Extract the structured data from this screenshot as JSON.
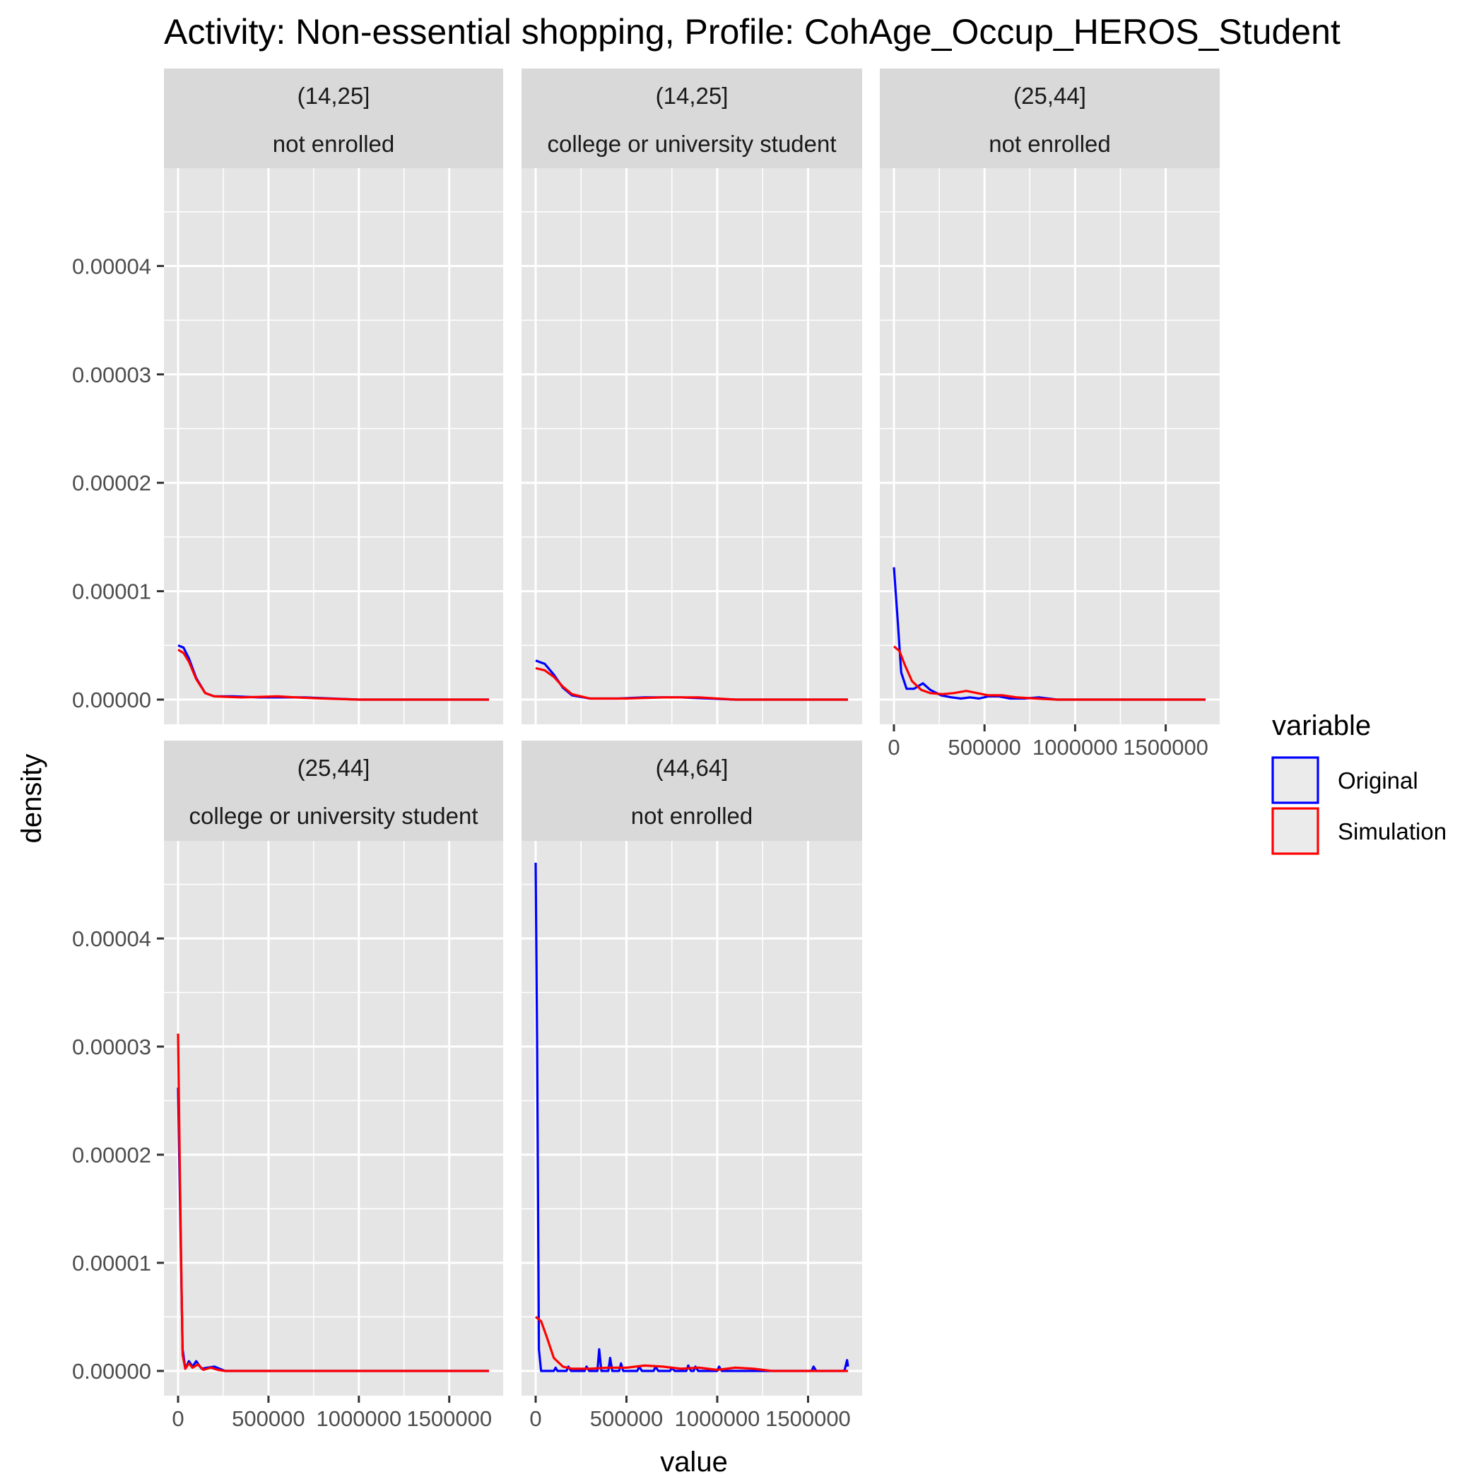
{
  "title": "Activity: Non-essential shopping, Profile: CohAge_Occup_HEROS_Student",
  "x_axis_label": "value",
  "y_axis_label": "density",
  "legend": {
    "title": "variable",
    "items": [
      {
        "label": "Original",
        "color": "#0000ff"
      },
      {
        "label": "Simulation",
        "color": "#ff0000"
      }
    ]
  },
  "colors": {
    "panel_bg": "#e5e5e5",
    "strip_bg": "#d9d9d9",
    "grid": "#ffffff",
    "original": "#0000ff",
    "simulation": "#ff0000"
  },
  "chart_data": {
    "type": "line",
    "facets": "wrap",
    "xlim": [
      0,
      1720000
    ],
    "ylim": [
      0,
      4.85e-05
    ],
    "x_ticks": [
      0,
      500000,
      1000000,
      1500000
    ],
    "x_tick_labels": [
      "0",
      "500000",
      "1000000",
      "1500000"
    ],
    "y_ticks": [
      0,
      1e-05,
      2e-05,
      3e-05,
      4e-05
    ],
    "y_tick_labels": [
      "0.00000",
      "0.00001",
      "0.00002",
      "0.00003",
      "0.00004"
    ],
    "panels": [
      {
        "strip1": "(14,25]",
        "strip2": "not enrolled",
        "series": [
          {
            "name": "Original",
            "points": [
              [
                0,
                5e-06
              ],
              [
                30000,
                4.8e-06
              ],
              [
                60000,
                3.8e-06
              ],
              [
                100000,
                2e-06
              ],
              [
                150000,
                6e-07
              ],
              [
                200000,
                3e-07
              ],
              [
                300000,
                3e-07
              ],
              [
                450000,
                2e-07
              ],
              [
                550000,
                2e-07
              ],
              [
                700000,
                2e-07
              ],
              [
                850000,
                1e-07
              ],
              [
                1000000,
                0
              ],
              [
                1720000,
                0
              ]
            ]
          },
          {
            "name": "Simulation",
            "points": [
              [
                0,
                4.6e-06
              ],
              [
                30000,
                4.3e-06
              ],
              [
                60000,
                3.5e-06
              ],
              [
                100000,
                1.9e-06
              ],
              [
                150000,
                6e-07
              ],
              [
                200000,
                3e-07
              ],
              [
                350000,
                2e-07
              ],
              [
                550000,
                3e-07
              ],
              [
                650000,
                2e-07
              ],
              [
                800000,
                1e-07
              ],
              [
                1000000,
                0
              ],
              [
                1720000,
                0
              ]
            ]
          }
        ]
      },
      {
        "strip1": "(14,25]",
        "strip2": "college or university student",
        "series": [
          {
            "name": "Original",
            "points": [
              [
                0,
                3.6e-06
              ],
              [
                50000,
                3.3e-06
              ],
              [
                100000,
                2.3e-06
              ],
              [
                150000,
                1.1e-06
              ],
              [
                200000,
                4e-07
              ],
              [
                300000,
                1e-07
              ],
              [
                450000,
                1e-07
              ],
              [
                600000,
                2e-07
              ],
              [
                800000,
                2e-07
              ],
              [
                1100000,
                0
              ],
              [
                1720000,
                0
              ]
            ]
          },
          {
            "name": "Simulation",
            "points": [
              [
                0,
                2.9e-06
              ],
              [
                50000,
                2.7e-06
              ],
              [
                100000,
                2.1e-06
              ],
              [
                150000,
                1.2e-06
              ],
              [
                200000,
                5e-07
              ],
              [
                300000,
                1e-07
              ],
              [
                500000,
                1e-07
              ],
              [
                700000,
                2e-07
              ],
              [
                900000,
                2e-07
              ],
              [
                1100000,
                0
              ],
              [
                1720000,
                0
              ]
            ]
          }
        ]
      },
      {
        "strip1": "(25,44]",
        "strip2": "not enrolled",
        "series": [
          {
            "name": "Original",
            "points": [
              [
                0,
                1.22e-05
              ],
              [
                20000,
                7.5e-06
              ],
              [
                40000,
                2.5e-06
              ],
              [
                70000,
                1e-06
              ],
              [
                110000,
                1e-06
              ],
              [
                160000,
                1.5e-06
              ],
              [
                200000,
                9e-07
              ],
              [
                260000,
                4e-07
              ],
              [
                320000,
                2e-07
              ],
              [
                370000,
                1e-07
              ],
              [
                420000,
                2e-07
              ],
              [
                470000,
                1e-07
              ],
              [
                520000,
                3e-07
              ],
              [
                580000,
                3e-07
              ],
              [
                640000,
                1e-07
              ],
              [
                720000,
                1e-07
              ],
              [
                800000,
                2e-07
              ],
              [
                900000,
                0
              ],
              [
                1720000,
                0
              ]
            ]
          },
          {
            "name": "Simulation",
            "points": [
              [
                0,
                4.9e-06
              ],
              [
                30000,
                4.5e-06
              ],
              [
                60000,
                3.2e-06
              ],
              [
                100000,
                1.7e-06
              ],
              [
                150000,
                9e-07
              ],
              [
                200000,
                6e-07
              ],
              [
                270000,
                5e-07
              ],
              [
                330000,
                6e-07
              ],
              [
                400000,
                8e-07
              ],
              [
                460000,
                6e-07
              ],
              [
                520000,
                4e-07
              ],
              [
                600000,
                4e-07
              ],
              [
                680000,
                2e-07
              ],
              [
                780000,
                1e-07
              ],
              [
                900000,
                0
              ],
              [
                1720000,
                0
              ]
            ]
          }
        ]
      },
      {
        "strip1": "(25,44]",
        "strip2": "college or university student",
        "series": [
          {
            "name": "Original",
            "points": [
              [
                0,
                2.62e-05
              ],
              [
                10000,
                1.6e-05
              ],
              [
                25000,
                2e-06
              ],
              [
                40000,
                2e-07
              ],
              [
                60000,
                9e-07
              ],
              [
                80000,
                4e-07
              ],
              [
                100000,
                9e-07
              ],
              [
                130000,
                2e-07
              ],
              [
                160000,
                3e-07
              ],
              [
                200000,
                4e-07
              ],
              [
                230000,
                2e-07
              ],
              [
                260000,
                0
              ],
              [
                1720000,
                0
              ]
            ]
          },
          {
            "name": "Simulation",
            "points": [
              [
                0,
                3.12e-05
              ],
              [
                10000,
                1.8e-05
              ],
              [
                25000,
                1.5e-06
              ],
              [
                40000,
                2e-07
              ],
              [
                60000,
                7e-07
              ],
              [
                80000,
                3e-07
              ],
              [
                110000,
                6e-07
              ],
              [
                140000,
                1e-07
              ],
              [
                180000,
                3e-07
              ],
              [
                220000,
                1e-07
              ],
              [
                260000,
                0
              ],
              [
                1720000,
                0
              ]
            ]
          }
        ]
      },
      {
        "strip1": "(44,64]",
        "strip2": "not enrolled",
        "series": [
          {
            "name": "Original",
            "points": [
              [
                0,
                4.7e-05
              ],
              [
                8000,
                3e-05
              ],
              [
                18000,
                2e-06
              ],
              [
                30000,
                0
              ],
              [
                100000,
                0
              ],
              [
                110000,
                3e-07
              ],
              [
                120000,
                0
              ],
              [
                170000,
                0
              ],
              [
                180000,
                4e-07
              ],
              [
                195000,
                0
              ],
              [
                270000,
                0
              ],
              [
                280000,
                4e-07
              ],
              [
                295000,
                0
              ],
              [
                340000,
                0
              ],
              [
                350000,
                2e-06
              ],
              [
                362000,
                0
              ],
              [
                400000,
                0
              ],
              [
                410000,
                1.2e-06
              ],
              [
                422000,
                0
              ],
              [
                460000,
                0
              ],
              [
                470000,
                7e-07
              ],
              [
                482000,
                0
              ],
              [
                560000,
                0
              ],
              [
                570000,
                4e-07
              ],
              [
                585000,
                0
              ],
              [
                650000,
                0
              ],
              [
                660000,
                4e-07
              ],
              [
                675000,
                0
              ],
              [
                740000,
                0
              ],
              [
                750000,
                3e-07
              ],
              [
                765000,
                0
              ],
              [
                830000,
                0
              ],
              [
                840000,
                5e-07
              ],
              [
                855000,
                0
              ],
              [
                870000,
                0
              ],
              [
                880000,
                4e-07
              ],
              [
                895000,
                0
              ],
              [
                1000000,
                0
              ],
              [
                1010000,
                4e-07
              ],
              [
                1025000,
                0
              ],
              [
                1520000,
                0
              ],
              [
                1530000,
                4e-07
              ],
              [
                1545000,
                0
              ],
              [
                1700000,
                0
              ],
              [
                1715000,
                1e-06
              ],
              [
                1720000,
                4e-07
              ]
            ]
          },
          {
            "name": "Simulation",
            "points": [
              [
                0,
                5e-06
              ],
              [
                30000,
                4.6e-06
              ],
              [
                60000,
                3.2e-06
              ],
              [
                100000,
                1.2e-06
              ],
              [
                150000,
                4e-07
              ],
              [
                200000,
                2e-07
              ],
              [
                300000,
                2e-07
              ],
              [
                400000,
                3e-07
              ],
              [
                500000,
                3e-07
              ],
              [
                600000,
                5e-07
              ],
              [
                700000,
                4e-07
              ],
              [
                800000,
                2e-07
              ],
              [
                900000,
                3e-07
              ],
              [
                1000000,
                1e-07
              ],
              [
                1100000,
                3e-07
              ],
              [
                1200000,
                2e-07
              ],
              [
                1300000,
                0
              ],
              [
                1720000,
                0
              ]
            ]
          }
        ]
      }
    ]
  }
}
